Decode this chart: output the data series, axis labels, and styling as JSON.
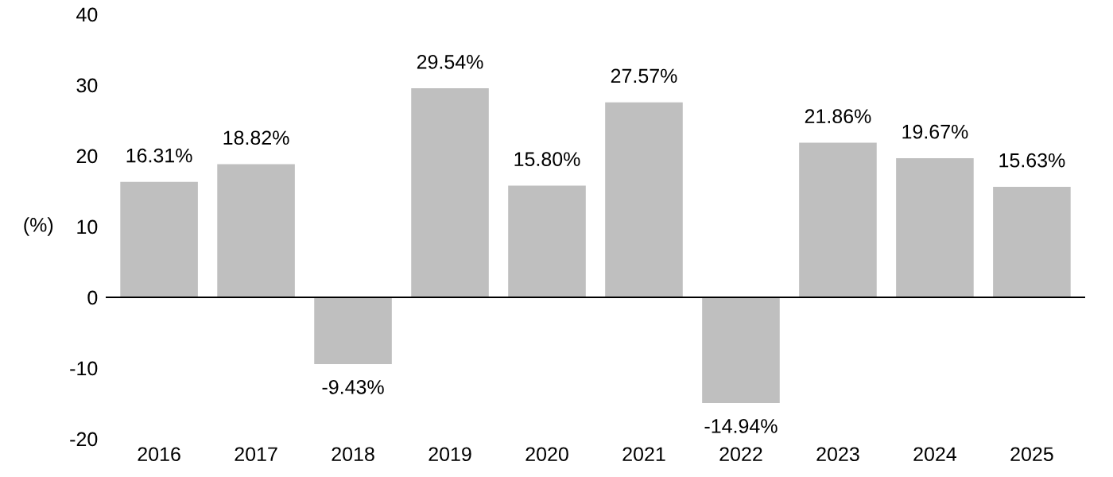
{
  "chart_data": {
    "type": "bar",
    "ylabel": "(%)",
    "categories": [
      "2016",
      "2017",
      "2018",
      "2019",
      "2020",
      "2021",
      "2022",
      "2023",
      "2024",
      "2025"
    ],
    "values": [
      16.31,
      18.82,
      -9.43,
      29.54,
      15.8,
      27.57,
      -14.94,
      21.86,
      19.67,
      15.63
    ],
    "value_labels": [
      "16.31%",
      "18.82%",
      "-9.43%",
      "29.54%",
      "15.80%",
      "27.57%",
      "-14.94%",
      "21.86%",
      "19.67%",
      "15.63%"
    ],
    "color": "#bfbfbf",
    "ylim": [
      -20,
      40
    ],
    "yticks": [
      -20,
      -10,
      0,
      10,
      20,
      30,
      40
    ],
    "ref_lines": [
      {
        "axis": "y",
        "value": 0,
        "color": "#000000"
      }
    ],
    "grid": false,
    "legend": false
  }
}
